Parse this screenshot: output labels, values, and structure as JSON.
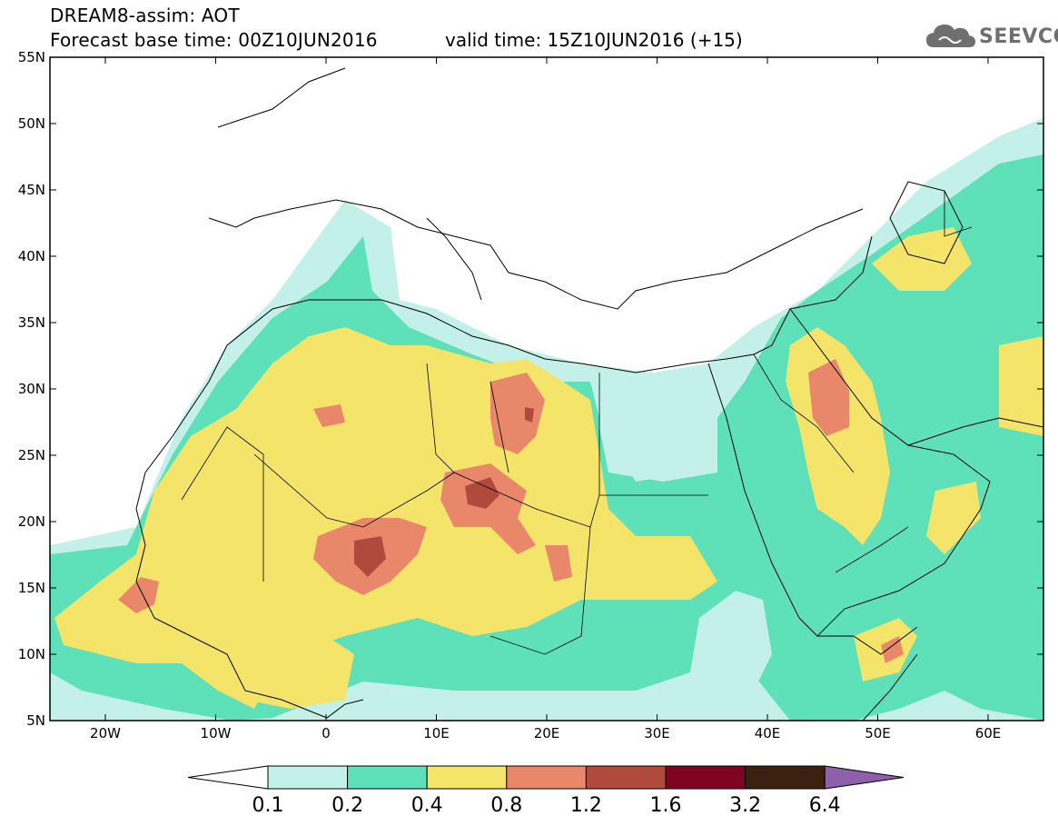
{
  "title": {
    "line1": "DREAM8-assim: AOT",
    "line2": "Forecast base time: 00Z10JUN2016",
    "valid": "valid time: 15Z10JUN2016 (+15)"
  },
  "logo": {
    "text": "SEEVCCC",
    "icon": "cloud-icon"
  },
  "lat_ticks": [
    "55N",
    "50N",
    "45N",
    "40N",
    "35N",
    "30N",
    "25N",
    "20N",
    "15N",
    "10N",
    "5N"
  ],
  "lon_ticks": [
    "20W",
    "10W",
    "0",
    "10E",
    "20E",
    "30E",
    "40E",
    "50E",
    "60E"
  ],
  "legend": {
    "labels": [
      "0.1",
      "0.2",
      "0.4",
      "0.8",
      "1.2",
      "1.6",
      "3.2",
      "6.4"
    ],
    "colors": [
      "#ffffff",
      "#c4f0ea",
      "#5ee0b8",
      "#f5e46a",
      "#e8876a",
      "#b04a3c",
      "#7d0522",
      "#3d2110",
      "#8e5faa"
    ]
  },
  "palette": {
    "c01": "#c4f0ea",
    "c02": "#5ee0b8",
    "c04": "#f5e46a",
    "c08": "#e8876a",
    "c12": "#b04a3c",
    "c16": "#7d0522"
  }
}
